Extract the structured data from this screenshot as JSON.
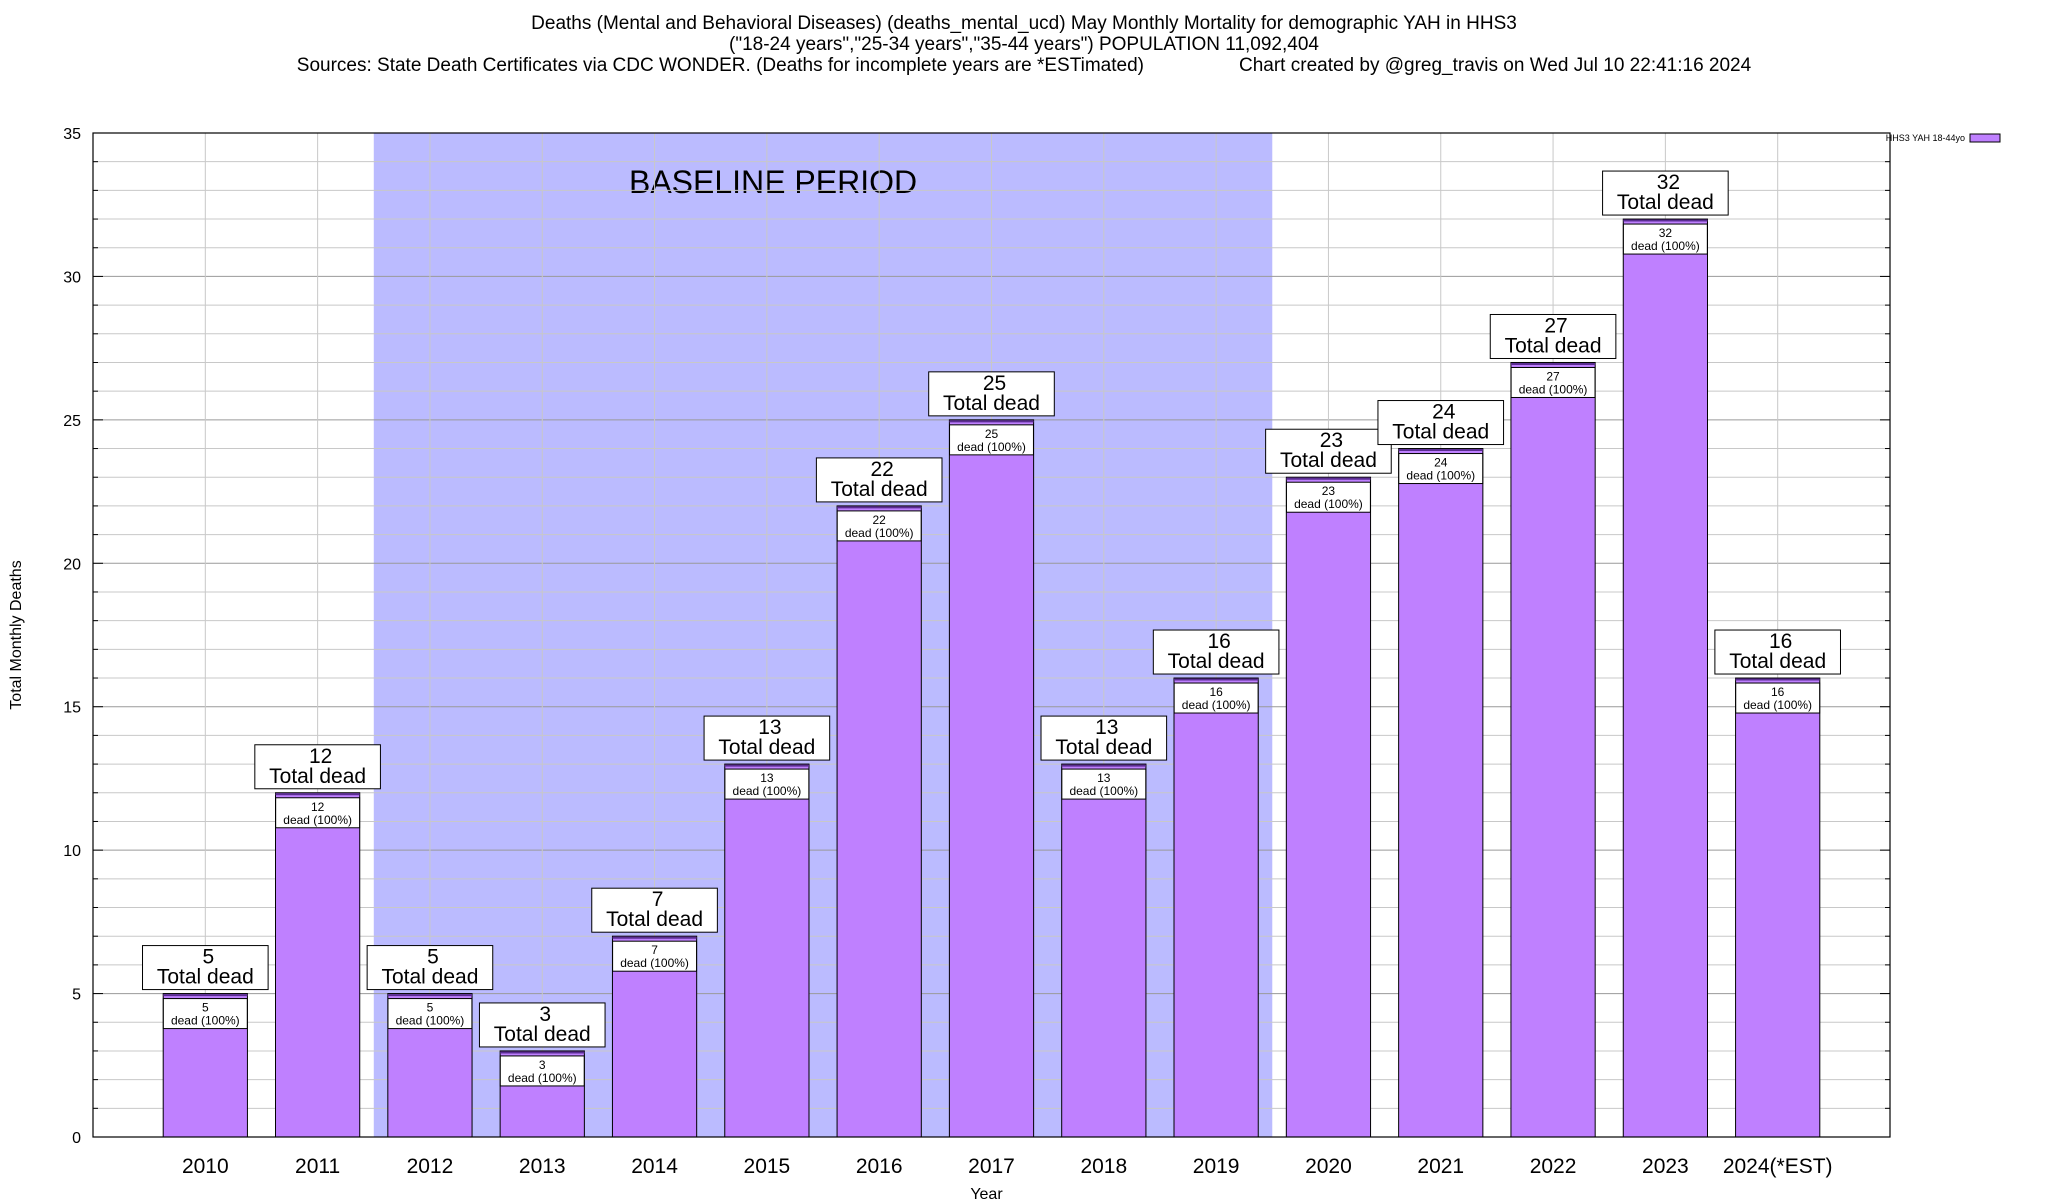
{
  "chart_data": {
    "type": "bar",
    "title_lines": [
      "Deaths (Mental and Behavioral Diseases) (deaths_mental_ucd) May Monthly Mortality for demographic YAH in HHS3",
      "(\"18-24 years\",\"25-34 years\",\"35-44 years\") POPULATION 11,092,404",
      "Sources: State Death Certificates via CDC WONDER. (Deaths for incomplete years are *ESTimated)                  Chart created by @greg_travis on Wed Jul 10 22:41:16 2024"
    ],
    "xlabel": "Year",
    "ylabel": "Total Monthly Deaths",
    "ylim": [
      0,
      35
    ],
    "yticks": [
      0,
      5,
      10,
      15,
      20,
      25,
      30,
      35
    ],
    "minor_step": 1,
    "categories": [
      "2010",
      "2011",
      "2012",
      "2013",
      "2014",
      "2015",
      "2016",
      "2017",
      "2018",
      "2019",
      "2020",
      "2021",
      "2022",
      "2023",
      "2024(*EST)"
    ],
    "series": [
      {
        "name": "HHS3 YAH 18-44yo",
        "values": [
          5,
          12,
          5,
          3,
          7,
          13,
          22,
          25,
          13,
          16,
          23,
          24,
          27,
          32,
          16
        ]
      }
    ],
    "label_total_suffix": "Total dead",
    "label_inner_suffix": "dead (100%)",
    "baseline": {
      "label": "BASELINE PERIOD",
      "from_index": 2,
      "to_index": 9
    },
    "legend_position": "top-right",
    "grid": true,
    "colors": {
      "bar": "#bf80ff",
      "bar_border": "#000000",
      "bar_top": "#5a2d91",
      "baseline": "#bbbbff"
    }
  }
}
